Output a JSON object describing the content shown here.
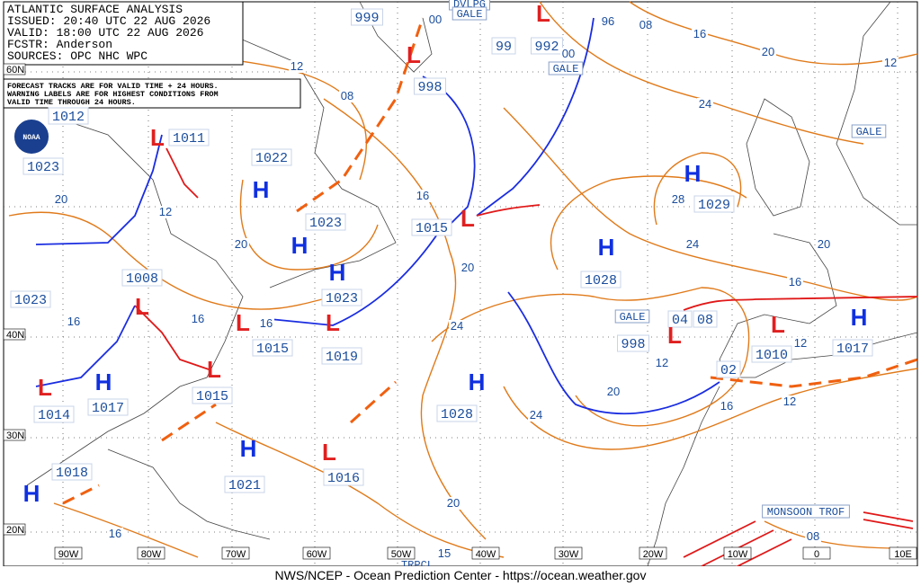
{
  "header": {
    "lines": [
      "ATLANTIC SURFACE ANALYSIS",
      "ISSUED: 20:40 UTC 22 AUG 2026",
      "VALID: 18:00 UTC 22 AUG 2026",
      "FCSTR: Anderson",
      "SOURCES: OPC NHC WPC"
    ],
    "note": [
      "FORECAST TRACKS ARE FOR VALID TIME + 24 HOURS.",
      "WARNING LABELS ARE FOR HIGHEST CONDITIONS FROM",
      "VALID TIME THROUGH 24 HOURS."
    ]
  },
  "logo": "NOAA",
  "footer": "NWS/NCEP - Ocean Prediction Center - https://ocean.weather.gov",
  "high_symbol": "H",
  "low_symbol": "L",
  "pressures": [
    "1012",
    "1011",
    "1023",
    "1022",
    "1023",
    "1015",
    "1008",
    "1023",
    "1023",
    "1028",
    "1029",
    "1015",
    "1019",
    "998",
    "1010",
    "1017",
    "1015",
    "1028",
    "1014",
    "1017",
    "1021",
    "1016",
    "1018",
    "999",
    "998",
    "99",
    "992",
    "02",
    "04",
    "08"
  ],
  "isobar_labels": [
    "12",
    "08",
    "16",
    "20",
    "24",
    "20",
    "24",
    "16",
    "12",
    "20",
    "16",
    "08",
    "24",
    "20",
    "16",
    "08",
    "96",
    "12",
    "20",
    "16",
    "12",
    "12",
    "20",
    "12",
    "20",
    "16",
    "16",
    "16",
    "00",
    "28",
    "24",
    "15",
    "00"
  ],
  "warnings": [
    "GALE",
    "GALE",
    "GALE",
    "DVLPG",
    "GALE",
    "MONSOON TROF",
    "TRPCL"
  ],
  "longitudes": [
    "90W",
    "80W",
    "70W",
    "60W",
    "50W",
    "40W",
    "30W",
    "20W",
    "10W",
    "0",
    "10E"
  ],
  "latitudes": [
    "60N",
    "40N",
    "30N",
    "20N"
  ]
}
